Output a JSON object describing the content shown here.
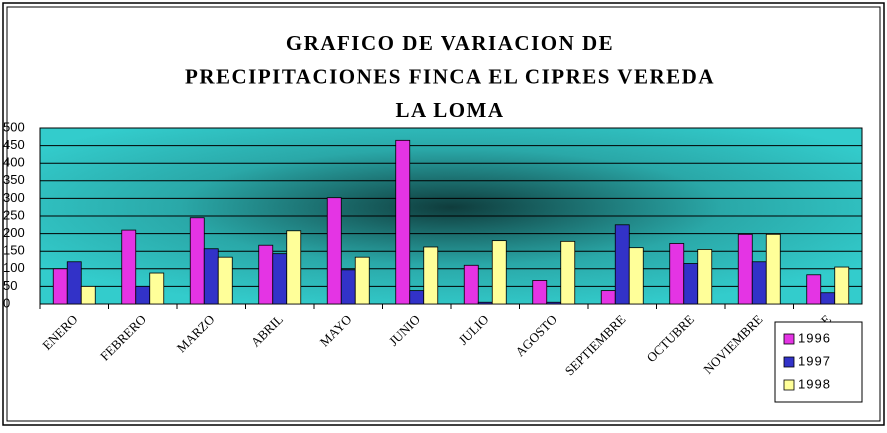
{
  "chart_data": {
    "type": "bar",
    "title_lines": [
      "GRAFICO DE VARIACION DE",
      "PRECIPITACIONES FINCA EL CIPRES VEREDA",
      "LA LOMA"
    ],
    "categories": [
      "ENERO",
      "FEBRERO",
      "MARZO",
      "ABRIL",
      "MAYO",
      "JUNIO",
      "JULIO",
      "AGOSTO",
      "SEPTIEMBRE",
      "OCTUBRE",
      "NOVIEMBRE",
      "DICIEMBRE"
    ],
    "series": [
      {
        "name": "1996",
        "color": "#e434e4",
        "values": [
          100,
          210,
          245,
          167,
          302,
          465,
          110,
          67,
          38,
          172,
          198,
          83
        ]
      },
      {
        "name": "1997",
        "color": "#3232c8",
        "values": [
          120,
          50,
          157,
          143,
          97,
          38,
          5,
          5,
          225,
          115,
          120,
          32
        ]
      },
      {
        "name": "1998",
        "color": "#ffff99",
        "values": [
          50,
          88,
          133,
          208,
          133,
          162,
          180,
          178,
          160,
          155,
          198,
          105
        ]
      }
    ],
    "ylim": [
      0,
      500
    ],
    "yticks": [
      0,
      50,
      100,
      150,
      200,
      250,
      300,
      350,
      400,
      450,
      500
    ],
    "grid": true,
    "legend": "bottom-right",
    "plot_background": "#33cccc"
  }
}
